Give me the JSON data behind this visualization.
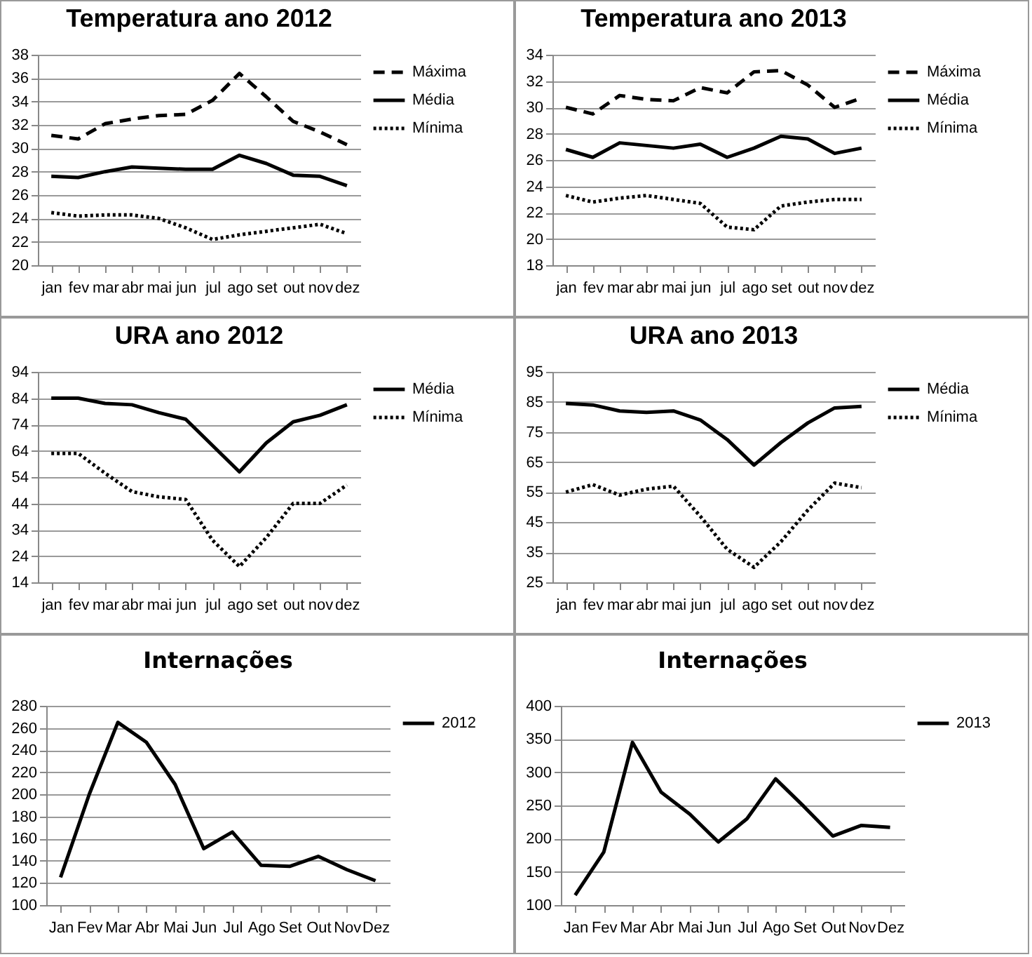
{
  "chart_data": [
    {
      "type": "line",
      "title": "Temperatura ano 2012",
      "categories": [
        "jan",
        "fev",
        "mar",
        "abr",
        "mai",
        "jun",
        "jul",
        "ago",
        "set",
        "out",
        "nov",
        "dez"
      ],
      "ylim": [
        20,
        38
      ],
      "yticks": [
        20,
        22,
        24,
        26,
        28,
        30,
        32,
        34,
        36,
        38
      ],
      "grid": "y",
      "legend": "right",
      "series": [
        {
          "name": "Máxima",
          "color": "#000000",
          "line_style": "dashed",
          "values": [
            31.1,
            30.8,
            32.1,
            32.5,
            32.8,
            32.9,
            34.1,
            36.4,
            34.4,
            32.3,
            31.4,
            30.3
          ]
        },
        {
          "name": "Média",
          "color": "#000000",
          "line_style": "solid",
          "values": [
            27.6,
            27.5,
            28.0,
            28.4,
            28.3,
            28.2,
            28.2,
            29.4,
            28.7,
            27.7,
            27.6,
            26.8
          ]
        },
        {
          "name": "Mínima",
          "color": "#000000",
          "line_style": "dotted",
          "values": [
            24.5,
            24.2,
            24.3,
            24.3,
            24.0,
            23.2,
            22.2,
            22.6,
            22.9,
            23.2,
            23.5,
            22.7
          ]
        }
      ]
    },
    {
      "type": "line",
      "title": "Temperatura ano 2013",
      "categories": [
        "jan",
        "fev",
        "mar",
        "abr",
        "mai",
        "jun",
        "jul",
        "ago",
        "set",
        "out",
        "nov",
        "dez"
      ],
      "ylim": [
        18,
        34
      ],
      "yticks": [
        18,
        20,
        22,
        24,
        26,
        28,
        30,
        32,
        34
      ],
      "grid": "y",
      "legend": "right",
      "series": [
        {
          "name": "Máxima",
          "color": "#000000",
          "line_style": "dashed",
          "values": [
            30.0,
            29.5,
            30.9,
            30.6,
            30.5,
            31.5,
            31.1,
            32.7,
            32.8,
            31.7,
            30.0,
            30.7
          ]
        },
        {
          "name": "Média",
          "color": "#000000",
          "line_style": "solid",
          "values": [
            26.8,
            26.2,
            27.3,
            27.1,
            26.9,
            27.2,
            26.2,
            26.9,
            27.8,
            27.6,
            26.5,
            26.9
          ]
        },
        {
          "name": "Mínima",
          "color": "#000000",
          "line_style": "dotted",
          "values": [
            23.3,
            22.8,
            23.1,
            23.3,
            23.0,
            22.7,
            20.9,
            20.7,
            22.5,
            22.8,
            23.0,
            23.0
          ]
        }
      ]
    },
    {
      "type": "line",
      "title": "URA ano 2012",
      "categories": [
        "jan",
        "fev",
        "mar",
        "abr",
        "mai",
        "jun",
        "jul",
        "ago",
        "set",
        "out",
        "nov",
        "dez"
      ],
      "ylim": [
        14,
        94
      ],
      "yticks": [
        14,
        24,
        34,
        44,
        54,
        64,
        74,
        84,
        94
      ],
      "grid": "y",
      "legend": "right",
      "series": [
        {
          "name": "Média",
          "color": "#000000",
          "line_style": "solid",
          "values": [
            84,
            84,
            82,
            81.5,
            78.5,
            76,
            66,
            56,
            67,
            75,
            77.5,
            81.5
          ]
        },
        {
          "name": "Mínima",
          "color": "#000000",
          "line_style": "dotted",
          "values": [
            63,
            63,
            55.5,
            48.5,
            46.5,
            45.5,
            30,
            20,
            31,
            44,
            44,
            51
          ]
        }
      ]
    },
    {
      "type": "line",
      "title": "URA ano 2013",
      "categories": [
        "jan",
        "fev",
        "mar",
        "abr",
        "mai",
        "jun",
        "jul",
        "ago",
        "set",
        "out",
        "nov",
        "dez"
      ],
      "ylim": [
        25,
        95
      ],
      "yticks": [
        25,
        35,
        45,
        55,
        65,
        75,
        85,
        95
      ],
      "grid": "y",
      "legend": "right",
      "series": [
        {
          "name": "Média",
          "color": "#000000",
          "line_style": "solid",
          "values": [
            84.5,
            84,
            82,
            81.5,
            82,
            79,
            72.5,
            64,
            71.5,
            78,
            83,
            83.5
          ]
        },
        {
          "name": "Mínima",
          "color": "#000000",
          "line_style": "dotted",
          "values": [
            55,
            57.5,
            54,
            56,
            57,
            47,
            36,
            30,
            38.5,
            49,
            58,
            56.5
          ]
        }
      ]
    },
    {
      "type": "line",
      "title": "Internações",
      "categories": [
        "Jan",
        "Fev",
        "Mar",
        "Abr",
        "Mai",
        "Jun",
        "Jul",
        "Ago",
        "Set",
        "Out",
        "Nov",
        "Dez"
      ],
      "ylim": [
        100,
        280
      ],
      "yticks": [
        100,
        120,
        140,
        160,
        180,
        200,
        220,
        240,
        260,
        280
      ],
      "grid": "y",
      "legend": "right",
      "series": [
        {
          "name": "2012",
          "color": "#000000",
          "line_style": "solid",
          "values": [
            125,
            200,
            265,
            247,
            209,
            151,
            166,
            136,
            135,
            144,
            132,
            122
          ]
        }
      ]
    },
    {
      "type": "line",
      "title": "Internações",
      "categories": [
        "Jan",
        "Fev",
        "Mar",
        "Abr",
        "Mai",
        "Jun",
        "Jul",
        "Ago",
        "Set",
        "Out",
        "Nov",
        "Dez"
      ],
      "ylim": [
        100,
        400
      ],
      "yticks": [
        100,
        150,
        200,
        250,
        300,
        350,
        400
      ],
      "grid": "y",
      "legend": "right",
      "series": [
        {
          "name": "2013",
          "color": "#000000",
          "line_style": "solid",
          "values": [
            115,
            180,
            345,
            270,
            237,
            195,
            230,
            290,
            248,
            204,
            220,
            217
          ]
        }
      ]
    }
  ]
}
